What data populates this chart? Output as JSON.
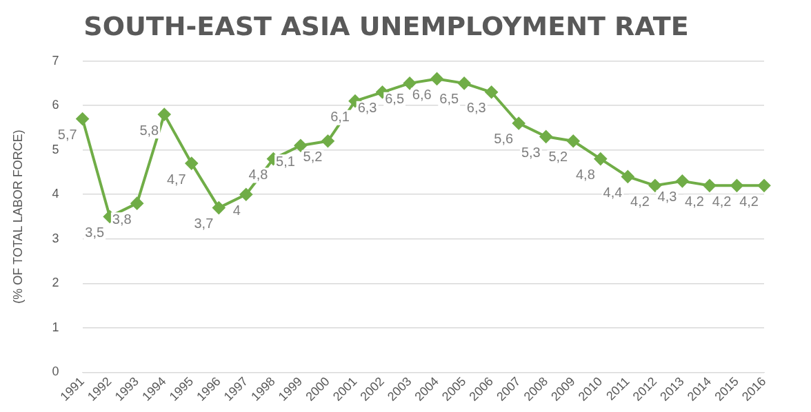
{
  "chart_data": {
    "type": "line",
    "title": "SOUTH-EAST ASIA UNEMPLOYMENT RATE",
    "ylabel": "(% OF TOTAL LABOR FORCE)",
    "categories": [
      "1991",
      "1992",
      "1993",
      "1994",
      "1995",
      "1996",
      "1997",
      "1998",
      "1999",
      "2000",
      "2001",
      "2002",
      "2003",
      "2004",
      "2005",
      "2006",
      "2007",
      "2008",
      "2009",
      "2010",
      "2011",
      "2012",
      "2013",
      "2014",
      "2015",
      "2016"
    ],
    "series": [
      {
        "color": "#70ad47",
        "values": [
          5.7,
          3.5,
          3.8,
          5.8,
          4.7,
          3.7,
          4,
          4.8,
          5.1,
          5.2,
          6.1,
          6.3,
          6.5,
          6.6,
          6.5,
          6.3,
          5.6,
          5.3,
          5.2,
          4.8,
          4.4,
          4.2,
          4.3,
          4.2,
          4.2,
          4.2
        ],
        "value_labels": [
          "5,7",
          "3,5",
          "3,8",
          "5,8",
          "4,7",
          "3,7",
          "4",
          "4,8",
          "5,1",
          "5,2",
          "6,1",
          "6,3",
          "6,5",
          "6,6",
          "6,5",
          "6,3",
          "5,6",
          "5,3",
          "5,2",
          "4,8",
          "4,4",
          "4,2",
          "4,3",
          "4,2",
          "4,2",
          "4,2"
        ]
      }
    ],
    "ylim": [
      0,
      7
    ],
    "yticks": [
      0,
      1,
      2,
      3,
      4,
      5,
      6,
      7
    ],
    "grid": "y",
    "legend": false,
    "marker": "diamond",
    "line_style": "solid"
  }
}
